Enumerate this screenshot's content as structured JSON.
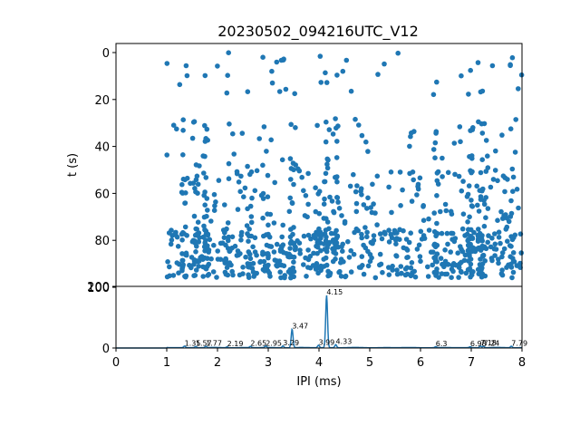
{
  "chart_data": [
    {
      "type": "scatter",
      "title": "20230502_094216UTC_V12",
      "xlabel": "",
      "ylabel": "t (s)",
      "xlim": [
        0,
        8
      ],
      "ylim": [
        100,
        0
      ],
      "y_inverted": true,
      "yticks": [
        0,
        20,
        40,
        60,
        80,
        100
      ],
      "yticklabels": [
        "0",
        "20",
        "40",
        "60",
        "80",
        "100"
      ],
      "marker_color": "#1f77b4",
      "grid": false,
      "seed": 12,
      "clusters": [
        {
          "t_min": 0,
          "t_max": 18,
          "count": 45
        },
        {
          "t_min": 28,
          "t_max": 50,
          "count": 90
        },
        {
          "t_min": 50,
          "t_max": 75,
          "count": 220
        },
        {
          "t_min": 75,
          "t_max": 90,
          "count": 420
        },
        {
          "t_min": 90,
          "t_max": 96,
          "count": 190
        }
      ],
      "x_columns": [
        1.35,
        1.57,
        1.77,
        2.19,
        2.65,
        2.95,
        3.29,
        3.47,
        3.99,
        4.15,
        4.33,
        6.3,
        6.98,
        7.18,
        7.24,
        7.79
      ]
    },
    {
      "type": "line",
      "xlabel": "IPI (ms)",
      "ylabel": "",
      "xlim": [
        0,
        8
      ],
      "ylim": [
        0,
        200
      ],
      "xticks": [
        0,
        1,
        2,
        3,
        4,
        5,
        6,
        7,
        8
      ],
      "xticklabels": [
        "0",
        "1",
        "2",
        "3",
        "4",
        "5",
        "6",
        "7",
        "8"
      ],
      "yticks": [
        0,
        200
      ],
      "yticklabels": [
        "0",
        "200"
      ],
      "line_color": "#1f77b4",
      "grid": false,
      "peaks": [
        {
          "x": 1.35,
          "y": 5,
          "label": "1.35"
        },
        {
          "x": 1.57,
          "y": 4,
          "label": "1.57"
        },
        {
          "x": 1.77,
          "y": 4,
          "label": "1.77"
        },
        {
          "x": 2.19,
          "y": 3,
          "label": "2.19"
        },
        {
          "x": 2.65,
          "y": 4,
          "label": "2.65"
        },
        {
          "x": 2.95,
          "y": 5,
          "label": "2.95"
        },
        {
          "x": 3.29,
          "y": 6,
          "label": "3.29"
        },
        {
          "x": 3.47,
          "y": 60,
          "label": "3.47"
        },
        {
          "x": 3.99,
          "y": 8,
          "label": "3.99"
        },
        {
          "x": 4.15,
          "y": 170,
          "label": "4.15"
        },
        {
          "x": 4.33,
          "y": 10,
          "label": "4.33"
        },
        {
          "x": 6.3,
          "y": 3,
          "label": "6.3"
        },
        {
          "x": 6.98,
          "y": 3,
          "label": "6.98"
        },
        {
          "x": 7.18,
          "y": 6,
          "label": "7.18"
        },
        {
          "x": 7.24,
          "y": 5,
          "label": "7.24"
        },
        {
          "x": 7.79,
          "y": 5,
          "label": "7.79"
        }
      ]
    }
  ]
}
